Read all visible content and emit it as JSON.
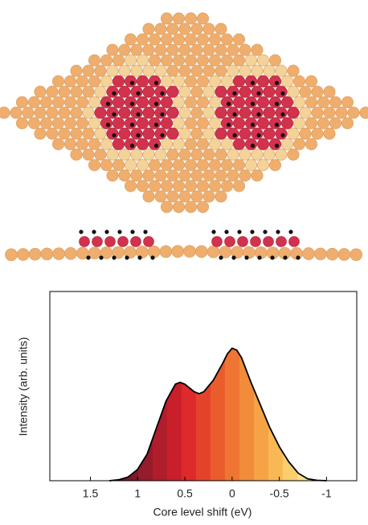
{
  "chart_data": {
    "type": "area",
    "xlabel": "Core level shift (eV)",
    "ylabel": "Intensity (arb. units)",
    "x": [
      1.3,
      1.2,
      1.1,
      1.0,
      0.9,
      0.8,
      0.7,
      0.6,
      0.55,
      0.5,
      0.4,
      0.35,
      0.3,
      0.2,
      0.1,
      0.05,
      0,
      -0.05,
      -0.1,
      -0.2,
      -0.3,
      -0.4,
      -0.5,
      -0.6,
      -0.7,
      -0.8,
      -0.9,
      -1.0
    ],
    "values": [
      0,
      0.005,
      0.02,
      0.06,
      0.14,
      0.28,
      0.42,
      0.51,
      0.52,
      0.51,
      0.47,
      0.46,
      0.47,
      0.53,
      0.62,
      0.67,
      0.7,
      0.69,
      0.65,
      0.52,
      0.4,
      0.28,
      0.18,
      0.1,
      0.04,
      0.01,
      0.002,
      0
    ],
    "xlim": [
      1.93,
      -1.32
    ],
    "ylim": [
      0,
      1
    ],
    "xticks": [
      1.5,
      1,
      0.5,
      0,
      -0.5,
      -1
    ],
    "line_color": "#000000",
    "fill_colors": [
      "#5e1826",
      "#7a1a2a",
      "#961b2b",
      "#b01d2b",
      "#c81f2a",
      "#dd2a2a",
      "#e4432b",
      "#ea5c2c",
      "#ef7532",
      "#f28c3a",
      "#f5a346",
      "#f8b955",
      "#face6c",
      "#fce08c",
      "#feefb2"
    ]
  }
}
